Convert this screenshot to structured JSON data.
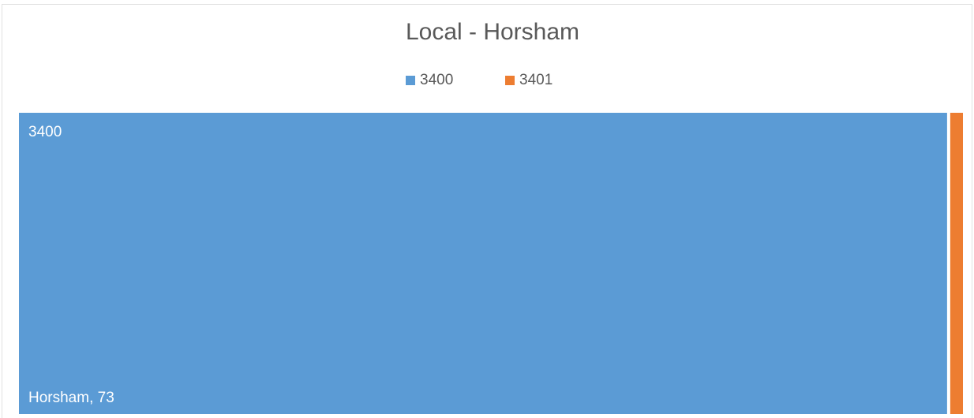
{
  "chart_data": {
    "type": "treemap",
    "title": "Local - Horsham",
    "categories": [
      "Horsham"
    ],
    "series": [
      {
        "name": "3400",
        "color": "#5b9bd5",
        "values": [
          73
        ],
        "value_labels": [
          "Horsham, 73"
        ]
      },
      {
        "name": "3401",
        "color": "#ed7d31",
        "values": [
          1
        ]
      }
    ],
    "legend": "top"
  }
}
